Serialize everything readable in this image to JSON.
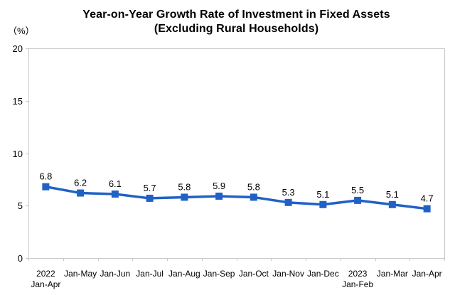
{
  "title": {
    "line1": "Year-on-Year Growth Rate of Investment in Fixed Assets",
    "line2": "(Excluding Rural Households)"
  },
  "unit_label": "（%）",
  "colors": {
    "series_blue": "#2061c6",
    "axis_gray": "#c9c9c9",
    "text_black": "#000000",
    "background": "#ffffff"
  },
  "chart_data": {
    "type": "line",
    "title": "Year-on-Year Growth Rate of Investment in Fixed Assets (Excluding Rural Households)",
    "xlabel": "",
    "ylabel": "（%）",
    "ylim": [
      0,
      20
    ],
    "yticks": [
      0,
      5,
      10,
      15,
      20
    ],
    "grid": false,
    "legend_position": "none",
    "marker": "square",
    "categories": [
      [
        "2022",
        "Jan-Apr"
      ],
      [
        "Jan-May"
      ],
      [
        "Jan-Jun"
      ],
      [
        "Jan-Jul"
      ],
      [
        "Jan-Aug"
      ],
      [
        "Jan-Sep"
      ],
      [
        "Jan-Oct"
      ],
      [
        "Jan-Nov"
      ],
      [
        "Jan-Dec"
      ],
      [
        "2023",
        "Jan-Feb"
      ],
      [
        "Jan-Mar"
      ],
      [
        "Jan-Apr"
      ]
    ],
    "values": [
      6.8,
      6.2,
      6.1,
      5.7,
      5.8,
      5.9,
      5.8,
      5.3,
      5.1,
      5.5,
      5.1,
      4.7
    ],
    "value_label_decimals": 1
  }
}
